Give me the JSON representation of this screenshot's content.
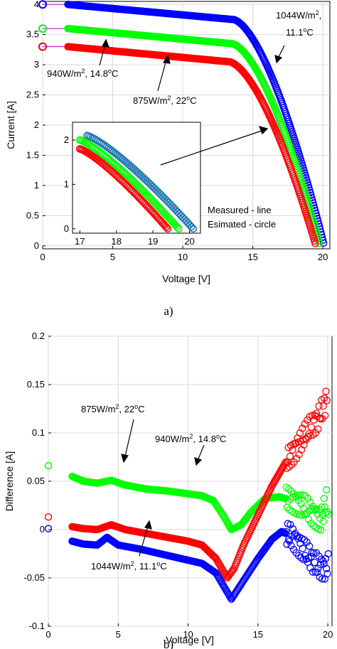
{
  "chart_data": [
    {
      "type": "scatter",
      "xlabel": "Voltage [V]",
      "ylabel": "Current [A]",
      "xlim": [
        0,
        20.5
      ],
      "ylim": [
        -0.05,
        4.05
      ],
      "xticks": [
        0,
        5,
        10,
        15,
        20
      ],
      "yticks": [
        0,
        0.5,
        1,
        1.5,
        2,
        2.5,
        3,
        3.5,
        4
      ],
      "grid": true,
      "caption": "a)",
      "legend_note": [
        "Measured - line",
        "Esimated - circle"
      ],
      "series": [
        {
          "label": "1044W/m², 11.1°C",
          "color": "#0000ff",
          "isc": 4.0,
          "voc": 20.1,
          "vstart": 1.8,
          "knee": 13.6
        },
        {
          "label": "940W/m², 14.8°C",
          "color": "#00ff00",
          "isc": 3.6,
          "voc": 19.8,
          "vstart": 1.8,
          "knee": 13.5
        },
        {
          "label": "875W/m², 22°C",
          "color": "#ff0000",
          "isc": 3.3,
          "voc": 19.5,
          "vstart": 1.8,
          "knee": 13.3
        }
      ],
      "annotations": [
        {
          "line1": "1044W/m",
          "sup1": "2",
          "line1_end": ",",
          "line2": "11.1",
          "sup2": "o",
          "line2_end": "C"
        },
        {
          "text": "940W/m",
          "sup1": "2",
          "mid": ", 14.8",
          "sup2": "o",
          "end": "C"
        },
        {
          "text": "875W/m",
          "sup1": "2",
          "mid": ", 22",
          "sup2": "o",
          "end": "C"
        }
      ],
      "inset": {
        "xlim": [
          16.8,
          20.3
        ],
        "ylim": [
          -0.1,
          2.4
        ],
        "xticks": [
          17,
          18,
          19,
          20
        ],
        "yticks": [
          0,
          1,
          2
        ],
        "series": [
          {
            "color": "#1f77b4",
            "x0": 17.2,
            "y0": 2.1,
            "x1": 20.1,
            "y1": 0.0
          },
          {
            "color": "#00ff00",
            "x0": 17.0,
            "y0": 2.0,
            "x1": 19.7,
            "y1": 0.0
          },
          {
            "color": "#ff0000",
            "x0": 17.0,
            "y0": 1.8,
            "x1": 19.4,
            "y1": 0.0
          }
        ]
      }
    },
    {
      "type": "scatter",
      "xlabel": "Voltage [V]",
      "ylabel": "Difference [A]",
      "xlim": [
        0,
        20.3
      ],
      "ylim": [
        -0.1,
        0.2
      ],
      "xticks": [
        0,
        5,
        10,
        15,
        20
      ],
      "yticks": [
        -0.1,
        -0.05,
        0,
        0.05,
        0.1,
        0.15,
        0.2
      ],
      "grid": true,
      "caption": "b)",
      "series": [
        {
          "label": "940W/m², 14.8°C",
          "color": "#00ff00",
          "outlier": [
            0,
            0.066
          ],
          "points": [
            [
              1.7,
              0.055
            ],
            [
              2.5,
              0.05
            ],
            [
              3.5,
              0.048
            ],
            [
              4.5,
              0.051
            ],
            [
              5.5,
              0.046
            ],
            [
              7,
              0.042
            ],
            [
              8.5,
              0.04
            ],
            [
              10,
              0.037
            ],
            [
              11,
              0.035
            ],
            [
              11.8,
              0.03
            ],
            [
              12.5,
              0.015
            ],
            [
              13.1,
              0.0
            ],
            [
              13.8,
              0.005
            ],
            [
              14.5,
              0.018
            ],
            [
              15.5,
              0.032
            ],
            [
              16.5,
              0.034
            ],
            [
              17.5,
              0.03
            ],
            [
              18.2,
              0.025
            ],
            [
              18.8,
              0.018
            ],
            [
              19.5,
              0.01
            ],
            [
              19.9,
              0.03
            ],
            [
              20.1,
              0.012
            ]
          ]
        },
        {
          "label": "875W/m², 22°C",
          "color": "#ff0000",
          "outlier": [
            0,
            0.013
          ],
          "points": [
            [
              1.7,
              0.003
            ],
            [
              2.5,
              0.001
            ],
            [
              3.5,
              0.0
            ],
            [
              4.5,
              0.005
            ],
            [
              5.5,
              0.0
            ],
            [
              7,
              -0.004
            ],
            [
              8.5,
              -0.008
            ],
            [
              10,
              -0.012
            ],
            [
              11,
              -0.016
            ],
            [
              12,
              -0.03
            ],
            [
              12.8,
              -0.05
            ],
            [
              13.3,
              -0.04
            ],
            [
              14,
              -0.015
            ],
            [
              15,
              0.015
            ],
            [
              16,
              0.045
            ],
            [
              17,
              0.07
            ],
            [
              18,
              0.09
            ],
            [
              18.7,
              0.105
            ],
            [
              19.3,
              0.115
            ],
            [
              19.8,
              0.13
            ],
            [
              20.0,
              0.14
            ]
          ]
        },
        {
          "label": "1044W/m², 11.1°C",
          "color": "#0000ff",
          "outlier": [
            0,
            0.001
          ],
          "points": [
            [
              1.7,
              -0.012
            ],
            [
              2.5,
              -0.015
            ],
            [
              3.5,
              -0.016
            ],
            [
              4.2,
              -0.008
            ],
            [
              5,
              -0.016
            ],
            [
              6.5,
              -0.02
            ],
            [
              8,
              -0.025
            ],
            [
              9.5,
              -0.03
            ],
            [
              11,
              -0.035
            ],
            [
              12,
              -0.045
            ],
            [
              13.1,
              -0.072
            ],
            [
              14,
              -0.052
            ],
            [
              15,
              -0.03
            ],
            [
              16,
              -0.01
            ],
            [
              16.7,
              -0.002
            ],
            [
              17.5,
              -0.008
            ],
            [
              18.2,
              -0.02
            ],
            [
              18.8,
              -0.03
            ],
            [
              19.3,
              -0.038
            ],
            [
              19.9,
              -0.04
            ],
            [
              20.1,
              -0.035
            ]
          ]
        }
      ],
      "annotations": [
        {
          "text": "875W/m",
          "sup1": "2",
          "mid": ", 22",
          "sup2": "o",
          "end": "C"
        },
        {
          "text": "940W/m",
          "sup1": "2",
          "mid": ", 14.8",
          "sup2": "o",
          "end": "C"
        },
        {
          "text": "1044W/m",
          "sup1": "2",
          "mid": ", 11.1",
          "sup2": "o",
          "end": "C"
        }
      ]
    }
  ]
}
